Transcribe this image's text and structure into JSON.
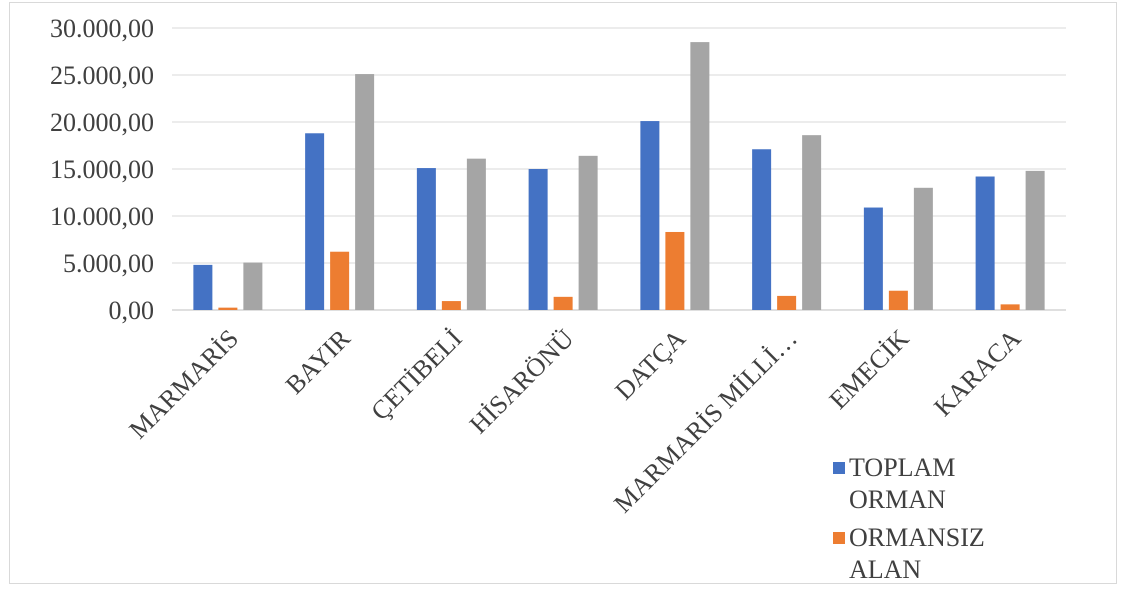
{
  "chart_data": {
    "type": "bar",
    "title": "",
    "xlabel": "",
    "ylabel": "",
    "ylim": [
      0,
      30000
    ],
    "yticks": [
      0,
      5000,
      10000,
      15000,
      20000,
      25000,
      30000
    ],
    "ytick_labels": [
      "0,00",
      "5.000,00",
      "10.000,00",
      "15.000,00",
      "20.000,00",
      "25.000,00",
      "30.000,00"
    ],
    "grid": true,
    "legend_position": "bottom-right",
    "categories": [
      "MARMARİS",
      "BAYIR",
      "ÇETİBELİ",
      "HİSARÖNÜ",
      "DATÇA",
      "MARMARİS MİLLİ…",
      "EMECİK",
      "KARACA"
    ],
    "series": [
      {
        "name": "TOPLAM ORMAN",
        "color": "#4472C4",
        "values": [
          4800,
          18800,
          15100,
          15000,
          20100,
          17100,
          10900,
          14200
        ]
      },
      {
        "name": "ORMANSIZ ALAN",
        "color": "#ED7D31",
        "values": [
          250,
          6200,
          950,
          1400,
          8300,
          1500,
          2050,
          600
        ]
      },
      {
        "color": "#A5A5A5",
        "values": [
          5050,
          25100,
          16100,
          16400,
          28500,
          18600,
          13000,
          14800
        ]
      }
    ]
  }
}
